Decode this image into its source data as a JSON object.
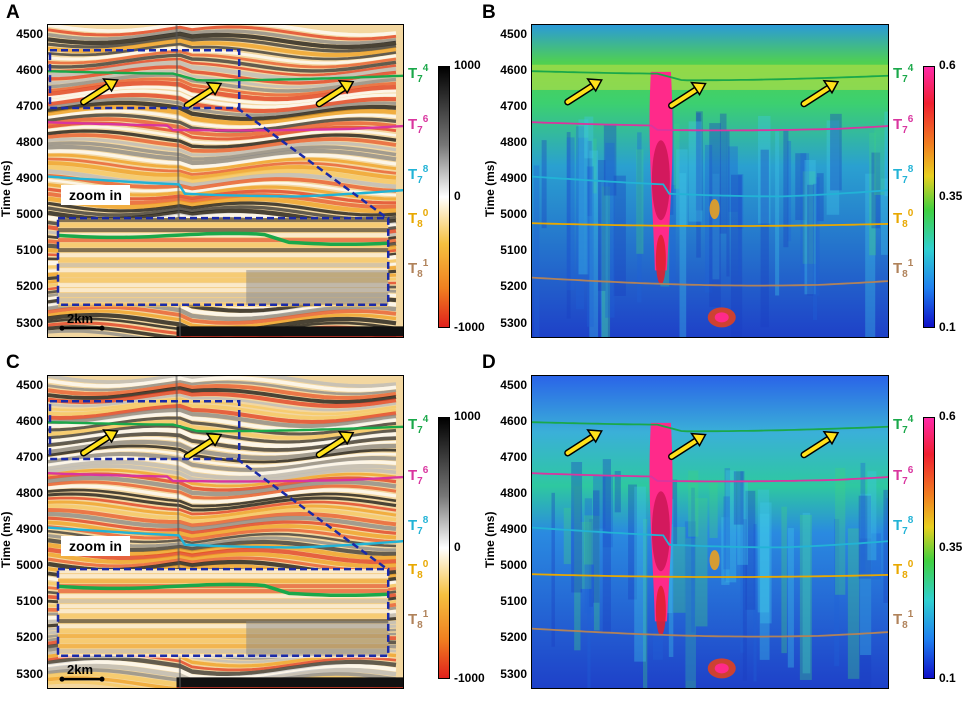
{
  "figure": {
    "axis_ylabel": "Time (ms)",
    "time_ticks": [
      "4500",
      "4600",
      "4700",
      "4800",
      "4900",
      "5000",
      "5100",
      "5200",
      "5300"
    ],
    "horizons": [
      {
        "base": "T",
        "sub": "7",
        "sup": "4",
        "color": "#1aa84a"
      },
      {
        "base": "T",
        "sub": "7",
        "sup": "6",
        "color": "#d9359f"
      },
      {
        "base": "T",
        "sub": "7",
        "sup": "8",
        "color": "#22b3d6"
      },
      {
        "base": "T",
        "sub": "8",
        "sup": "0",
        "color": "#e8a800"
      },
      {
        "base": "T",
        "sub": "8",
        "sup": "1",
        "color": "#b0825a"
      }
    ],
    "zoom_label": "zoom in",
    "scale_label": "2km",
    "seismic_colorbar": {
      "max": "1000",
      "mid": "0",
      "min": "-1000"
    },
    "attribute_colorbar": {
      "max": "0.6",
      "mid": "0.35",
      "min": "0.1"
    },
    "panels": [
      {
        "letter": "A",
        "kind": "seismic"
      },
      {
        "letter": "B",
        "kind": "attribute"
      },
      {
        "letter": "C",
        "kind": "seismic"
      },
      {
        "letter": "D",
        "kind": "attribute"
      }
    ]
  }
}
